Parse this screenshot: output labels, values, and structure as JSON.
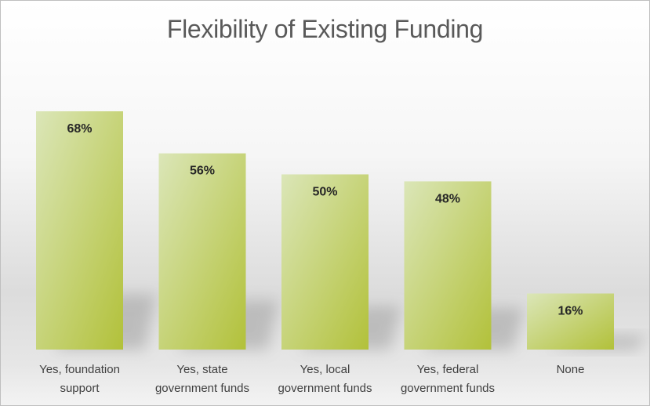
{
  "chart_data": {
    "type": "bar",
    "title": "Flexibility of Existing Funding",
    "categories": [
      [
        "Yes, foundation",
        "support"
      ],
      [
        "Yes, state",
        "government funds"
      ],
      [
        "Yes, local",
        "government funds"
      ],
      [
        "Yes, federal",
        "government funds"
      ],
      [
        "None"
      ]
    ],
    "values": [
      68,
      56,
      50,
      48,
      16
    ],
    "value_labels": [
      "68%",
      "56%",
      "50%",
      "48%",
      "16%"
    ],
    "ylim": [
      0,
      68
    ],
    "grid": false,
    "legend": "none",
    "colors": {
      "bar_light": "#dbe6b8",
      "bar_dark": "#b2c13a",
      "shadow": "#7a7a7a"
    }
  }
}
